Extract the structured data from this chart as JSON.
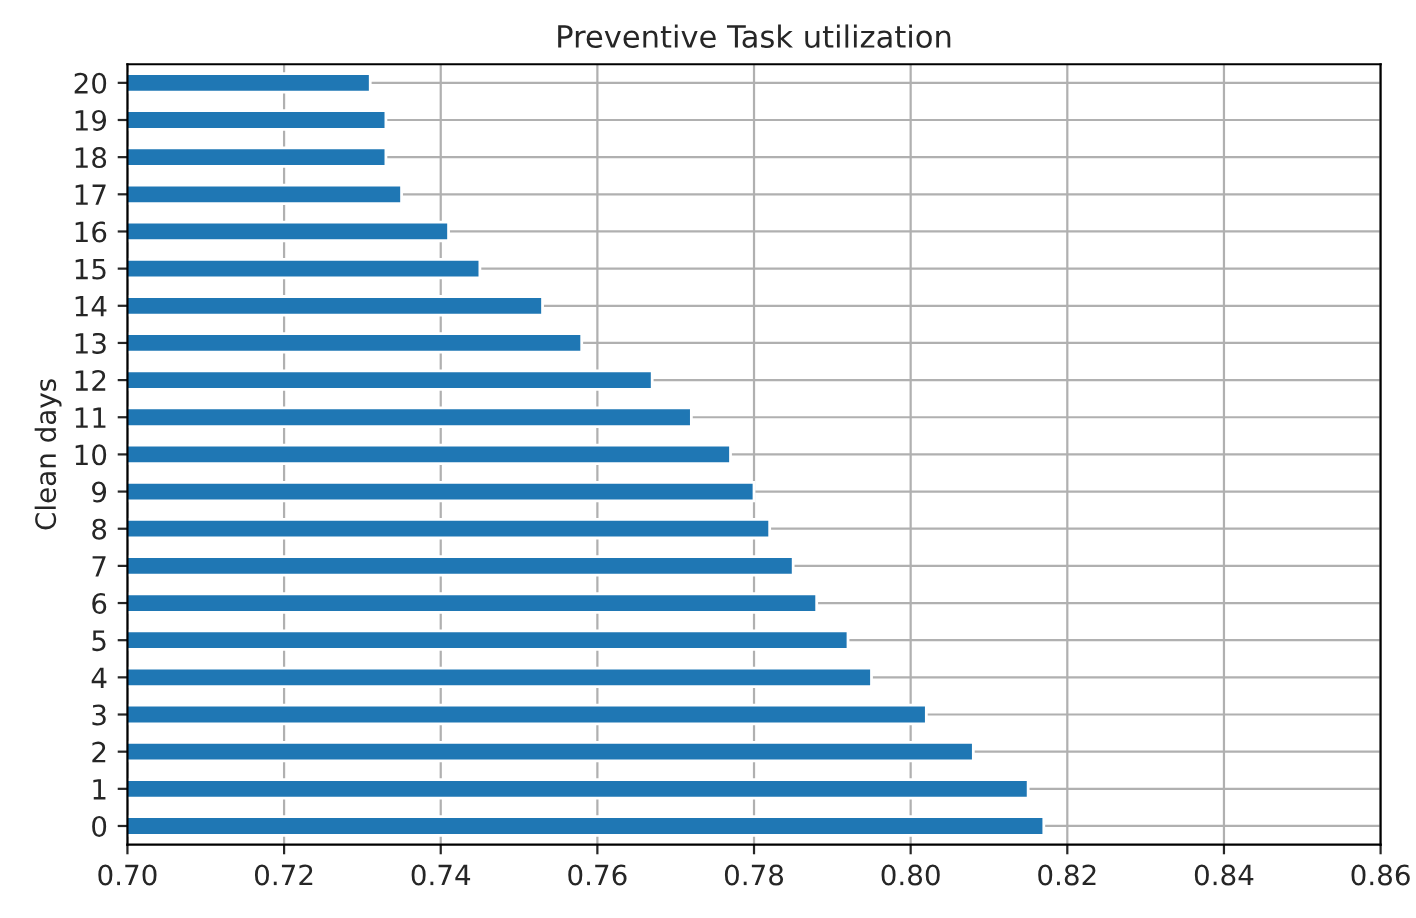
{
  "chart_data": {
    "type": "bar",
    "orientation": "horizontal",
    "title": "Preventive Task utilization",
    "ylabel": "Clean days",
    "categories": [
      "20",
      "19",
      "18",
      "17",
      "16",
      "15",
      "14",
      "13",
      "12",
      "11",
      "10",
      "9",
      "8",
      "7",
      "6",
      "5",
      "4",
      "3",
      "2",
      "1",
      "0"
    ],
    "values": [
      0.731,
      0.733,
      0.733,
      0.735,
      0.741,
      0.745,
      0.753,
      0.758,
      0.767,
      0.772,
      0.777,
      0.78,
      0.782,
      0.785,
      0.788,
      0.792,
      0.795,
      0.802,
      0.808,
      0.815,
      0.817
    ],
    "color": "#1f77b4",
    "xlim": [
      0.7,
      0.86
    ],
    "xticks": [
      {
        "value": 0.7,
        "label": "0.70"
      },
      {
        "value": 0.72,
        "label": "0.72"
      },
      {
        "value": 0.74,
        "label": "0.74"
      },
      {
        "value": 0.76,
        "label": "0.76"
      },
      {
        "value": 0.78,
        "label": "0.78"
      },
      {
        "value": 0.8,
        "label": "0.80"
      },
      {
        "value": 0.82,
        "label": "0.82"
      },
      {
        "value": 0.84,
        "label": "0.84"
      },
      {
        "value": 0.86,
        "label": "0.86"
      }
    ],
    "grid": true
  }
}
